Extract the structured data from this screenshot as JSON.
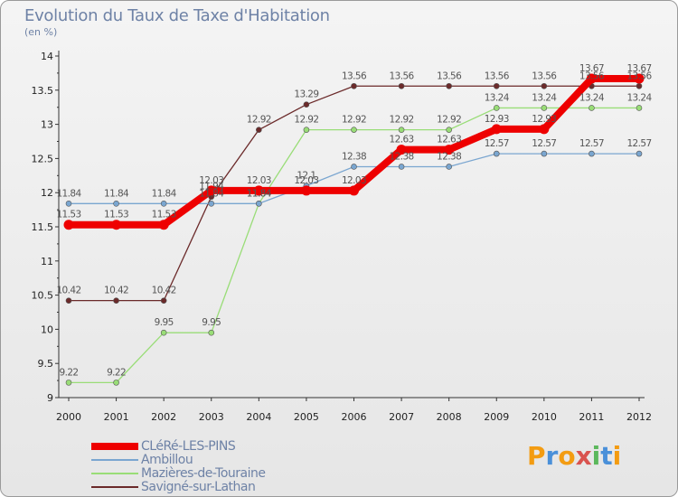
{
  "title": "Evolution du Taux de Taxe d'Habitation",
  "subtitle": "(en %)",
  "logo": {
    "letters": [
      "P",
      "r",
      "o",
      "x",
      "i",
      "t",
      "i"
    ],
    "colors": [
      "#f39c12",
      "#4a90d9",
      "#f39c12",
      "#d9534f",
      "#5cb85c",
      "#4a90d9",
      "#f39c12"
    ]
  },
  "chart_data": {
    "type": "line",
    "title": "Evolution du Taux de Taxe d'Habitation",
    "ylabel": "(en %)",
    "x": [
      "2000",
      "2001",
      "2002",
      "2003",
      "2004",
      "2005",
      "2006",
      "2007",
      "2008",
      "2009",
      "2010",
      "2011",
      "2012"
    ],
    "ylim": [
      9,
      14
    ],
    "yticks": [
      9,
      9.5,
      10,
      10.5,
      11,
      11.5,
      12,
      12.5,
      13,
      13.5,
      14
    ],
    "ytick_labels": [
      "9",
      "9.5",
      "10",
      "10.5",
      "11",
      "11.5",
      "12",
      "12.5",
      "13",
      "13.5",
      "14"
    ],
    "grid": false,
    "legend_position": "bottom-left",
    "series": [
      {
        "name": "Savigné-sur-Lathan",
        "color": "#6b2a2a",
        "width": 1.3,
        "values": [
          10.42,
          10.42,
          10.42,
          11.94,
          12.92,
          13.29,
          13.56,
          13.56,
          13.56,
          13.56,
          13.56,
          13.56,
          13.56
        ],
        "labels": [
          "10.42",
          "10.42",
          "10.42",
          "11.94",
          "12.92",
          "13.29",
          "13.56",
          "13.56",
          "13.56",
          "13.56",
          "13.56",
          "13.56",
          "13.56"
        ]
      },
      {
        "name": "Mazières-de-Touraine",
        "color": "#99dd77",
        "width": 1.3,
        "values": [
          9.22,
          9.22,
          9.95,
          9.95,
          11.84,
          12.92,
          12.92,
          12.92,
          12.92,
          13.24,
          13.24,
          13.24,
          13.24
        ],
        "labels": [
          "9.22",
          "9.22",
          "9.95",
          "9.95",
          "11.84",
          "12.92",
          "12.92",
          "12.92",
          "12.92",
          "13.24",
          "13.24",
          "13.24",
          "13.24"
        ]
      },
      {
        "name": "Ambillou",
        "color": "#7aa6d0",
        "width": 1.3,
        "values": [
          11.84,
          11.84,
          11.84,
          11.84,
          11.84,
          12.1,
          12.38,
          12.38,
          12.38,
          12.57,
          12.57,
          12.57,
          12.57
        ],
        "labels": [
          "11.84",
          "11.84",
          "11.84",
          "11.84",
          "11.84",
          "12.1",
          "12.38",
          "12.38",
          "12.38",
          "12.57",
          "12.57",
          "12.57",
          "12.57"
        ]
      },
      {
        "name": "CLéRé-LES-PINS",
        "color": "#ee0000",
        "width": 8,
        "values": [
          11.53,
          11.53,
          11.53,
          12.03,
          12.03,
          12.03,
          12.03,
          12.63,
          12.63,
          12.93,
          12.93,
          13.67,
          13.67
        ],
        "labels": [
          "11.53",
          "11.53",
          "11.53",
          "12.03",
          "12.03",
          "12.03",
          "12.03",
          "12.63",
          "12.63",
          "12.93",
          "12.93",
          "13.67",
          "13.67"
        ]
      }
    ],
    "legend_order": [
      "CLéRé-LES-PINS",
      "Ambillou",
      "Mazières-de-Touraine",
      "Savigné-sur-Lathan"
    ]
  }
}
